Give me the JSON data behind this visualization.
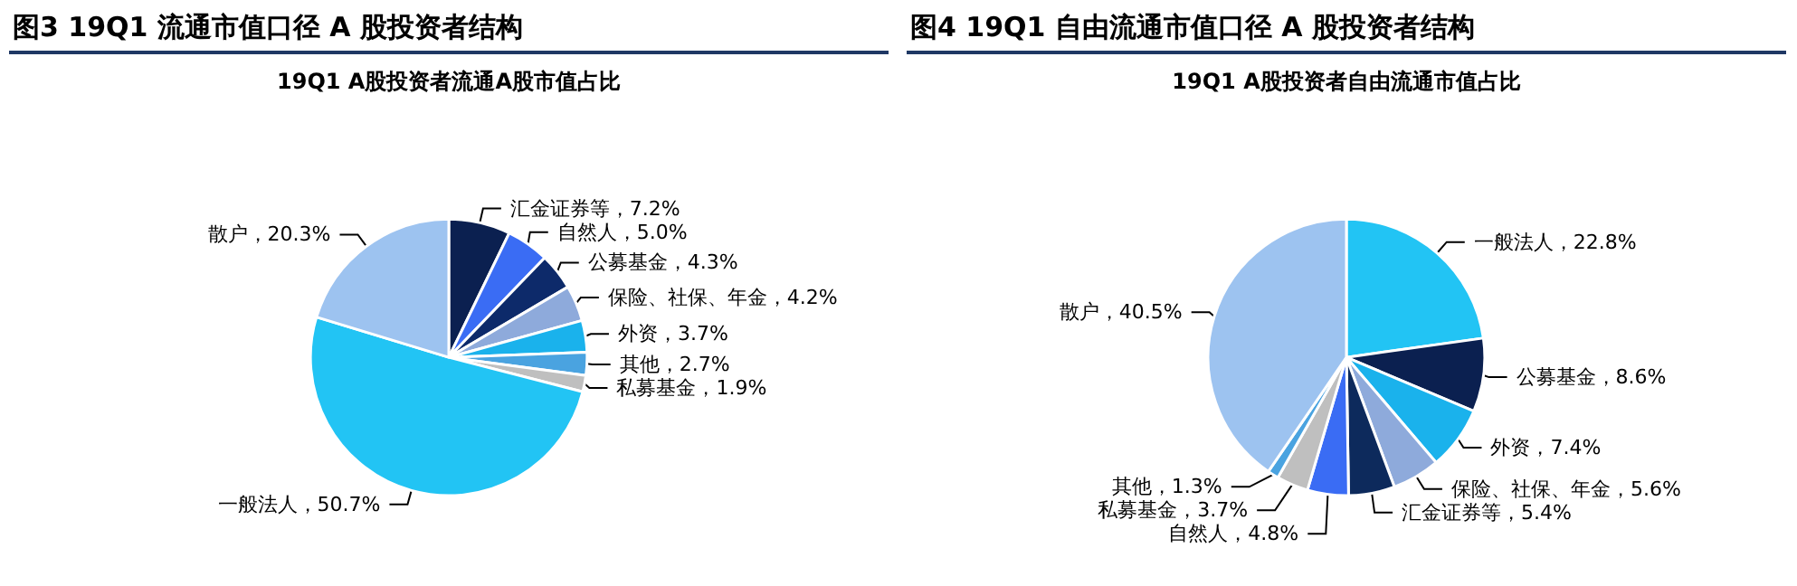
{
  "chart_data": [
    {
      "type": "pie",
      "title": "图3  19Q1 流通市值口径 A 股投资者结构",
      "subtitle": "19Q1 A股投资者流通A股市值占比",
      "categories": [
        "汇金证券等",
        "自然人",
        "公募基金",
        "保险、社保、年金",
        "外资",
        "其他",
        "私募基金",
        "一般法人",
        "散户"
      ],
      "values": [
        7.2,
        5.0,
        4.3,
        4.2,
        3.7,
        2.7,
        1.9,
        50.7,
        20.3
      ],
      "value_labels": [
        "7.2%",
        "5.0%",
        "4.3%",
        "4.2%",
        "3.7%",
        "2.7%",
        "1.9%",
        "50.7%",
        "20.3%"
      ],
      "colors": [
        "#0b2050",
        "#3a6cf4",
        "#0d2a6a",
        "#8eaadb",
        "#1ab2ec",
        "#4aa3e0",
        "#bfbfbf",
        "#22c4f4",
        "#9dc3f0"
      ],
      "legend": false
    },
    {
      "type": "pie",
      "title": "图4  19Q1 自由流通市值口径 A 股投资者结构",
      "subtitle": "19Q1 A股投资者自由流通市值占比",
      "categories": [
        "一般法人",
        "公募基金",
        "外资",
        "保险、社保、年金",
        "汇金证券等",
        "自然人",
        "私募基金",
        "其他",
        "散户"
      ],
      "values": [
        22.8,
        8.6,
        7.4,
        5.6,
        5.4,
        4.8,
        3.7,
        1.3,
        40.5
      ],
      "value_labels": [
        "22.8%",
        "8.6%",
        "7.4%",
        "5.6%",
        "5.4%",
        "4.8%",
        "3.7%",
        "1.3%",
        "40.5%"
      ],
      "colors": [
        "#22c4f4",
        "#0b2050",
        "#1ab2ec",
        "#8eaadb",
        "#0d2a5c",
        "#3a6cf4",
        "#bfbfbf",
        "#4aa3e0",
        "#9dc3f0"
      ],
      "legend": false
    }
  ]
}
